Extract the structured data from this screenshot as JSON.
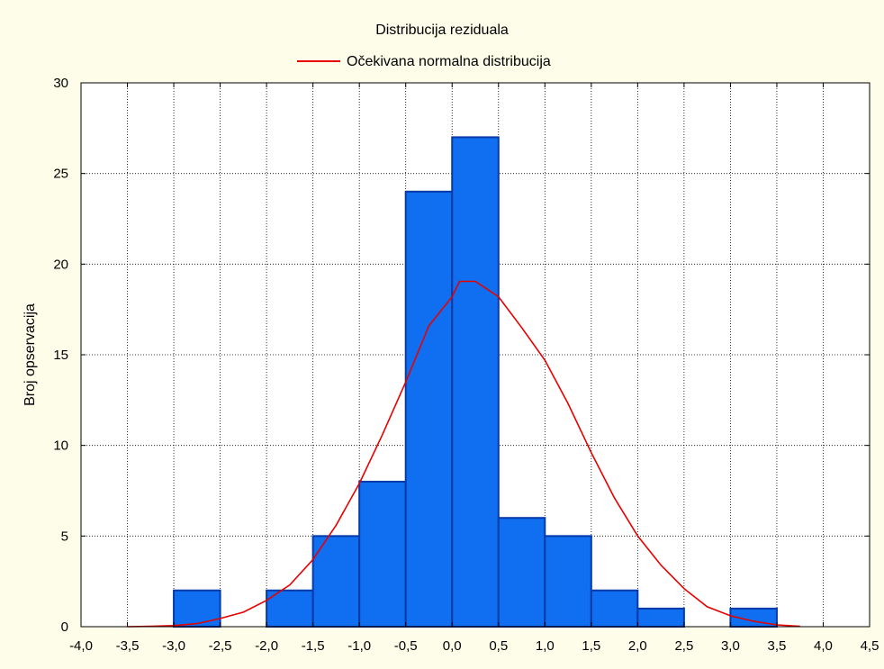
{
  "colors": {
    "background": "#fdfde9",
    "plot_background": "#ffffff",
    "bar_fill": "#0f6ff0",
    "bar_stroke": "#063aa8",
    "curve": "#e60000",
    "grid": "#000000"
  },
  "chart_data": {
    "type": "bar",
    "title": "Distribucija reziduala",
    "ylabel": "Broj opservacija",
    "xlabel": "",
    "xlim": [
      -4.0,
      4.5
    ],
    "ylim": [
      0,
      30
    ],
    "grid": true,
    "legend_position": "top-center",
    "x_ticks": [
      -4.0,
      -3.5,
      -3.0,
      -2.5,
      -2.0,
      -1.5,
      -1.0,
      -0.5,
      0.0,
      0.5,
      1.0,
      1.5,
      2.0,
      2.5,
      3.0,
      3.5,
      4.0,
      4.5
    ],
    "x_tick_labels": [
      "-4,0",
      "-3,5",
      "-3,0",
      "-2,5",
      "-2,0",
      "-1,5",
      "-1,0",
      "-0,5",
      "0,0",
      "0,5",
      "1,0",
      "1,5",
      "2,0",
      "2,5",
      "3,0",
      "3,5",
      "4,0",
      "4,5"
    ],
    "y_ticks": [
      0,
      5,
      10,
      15,
      20,
      25,
      30
    ],
    "y_tick_labels": [
      "0",
      "5",
      "10",
      "15",
      "20",
      "25",
      "30"
    ],
    "bins": [
      {
        "from": -3.0,
        "to": -2.5,
        "count": 2
      },
      {
        "from": -2.5,
        "to": -2.0,
        "count": 0
      },
      {
        "from": -2.0,
        "to": -1.5,
        "count": 2
      },
      {
        "from": -1.5,
        "to": -1.0,
        "count": 5
      },
      {
        "from": -1.0,
        "to": -0.5,
        "count": 8
      },
      {
        "from": -0.5,
        "to": 0.0,
        "count": 24
      },
      {
        "from": 0.0,
        "to": 0.5,
        "count": 27
      },
      {
        "from": 0.5,
        "to": 1.0,
        "count": 6
      },
      {
        "from": 1.0,
        "to": 1.5,
        "count": 5
      },
      {
        "from": 1.5,
        "to": 2.0,
        "count": 2
      },
      {
        "from": 2.0,
        "to": 2.5,
        "count": 1
      },
      {
        "from": 2.5,
        "to": 3.0,
        "count": 0
      },
      {
        "from": 3.0,
        "to": 3.5,
        "count": 1
      }
    ],
    "series": [
      {
        "name": "Očekivana normalna distribucija",
        "type": "line",
        "points": [
          [
            -3.5,
            0.0
          ],
          [
            -3.25,
            0.02
          ],
          [
            -3.0,
            0.06
          ],
          [
            -2.75,
            0.17
          ],
          [
            -2.5,
            0.45
          ],
          [
            -2.25,
            0.8
          ],
          [
            -2.0,
            1.45
          ],
          [
            -1.75,
            2.3
          ],
          [
            -1.5,
            3.7
          ],
          [
            -1.25,
            5.6
          ],
          [
            -1.0,
            7.9
          ],
          [
            -0.75,
            10.6
          ],
          [
            -0.5,
            13.5
          ],
          [
            -0.25,
            16.6
          ],
          [
            0.0,
            18.2
          ],
          [
            0.08,
            19.05
          ],
          [
            0.25,
            19.05
          ],
          [
            0.5,
            18.2
          ],
          [
            0.75,
            16.5
          ],
          [
            1.0,
            14.7
          ],
          [
            1.25,
            12.3
          ],
          [
            1.5,
            9.6
          ],
          [
            1.75,
            7.1
          ],
          [
            2.0,
            5.0
          ],
          [
            2.25,
            3.4
          ],
          [
            2.5,
            2.1
          ],
          [
            2.75,
            1.1
          ],
          [
            3.0,
            0.6
          ],
          [
            3.25,
            0.3
          ],
          [
            3.5,
            0.1
          ],
          [
            3.75,
            0.02
          ]
        ]
      }
    ]
  }
}
